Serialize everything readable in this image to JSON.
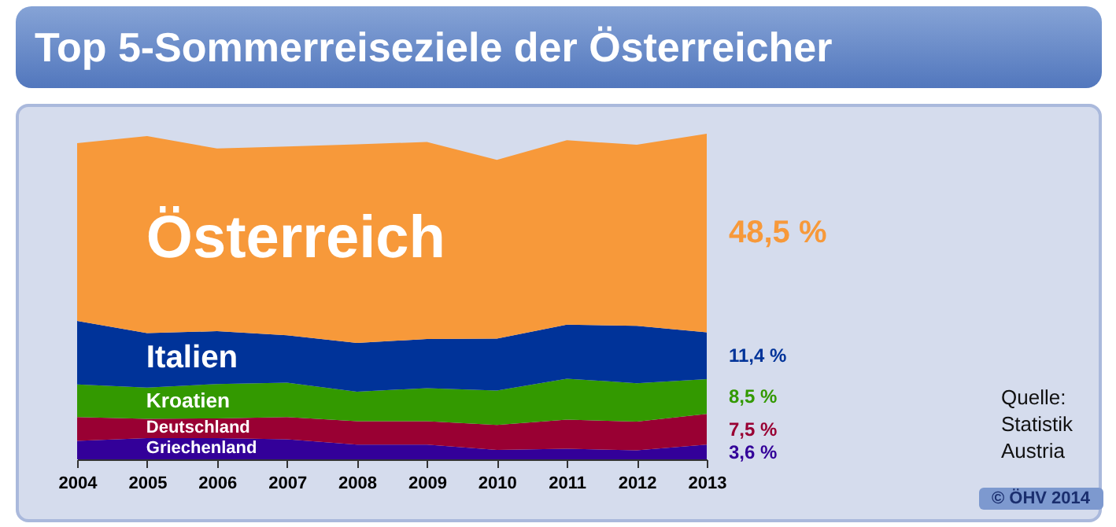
{
  "chart_data": {
    "type": "area",
    "stacked": true,
    "title": "Top 5-Sommerreiseziele der Österreicher",
    "categories": [
      "2004",
      "2005",
      "2006",
      "2007",
      "2008",
      "2009",
      "2010",
      "2011",
      "2012",
      "2013"
    ],
    "series": [
      {
        "name": "Griechenland",
        "color": "#330099",
        "values": [
          4.5,
          5.2,
          5.2,
          4.9,
          3.6,
          3.6,
          2.3,
          2.6,
          2.2,
          3.6
        ],
        "value_labels": [
          null,
          null,
          null,
          null,
          null,
          null,
          null,
          null,
          null,
          "3,6 %"
        ]
      },
      {
        "name": "Deutschland",
        "color": "#990033",
        "values": [
          5.8,
          4.7,
          4.8,
          5.4,
          5.7,
          5.7,
          6.1,
          7.1,
          7.0,
          7.5
        ],
        "value_labels": [
          null,
          null,
          null,
          null,
          null,
          null,
          null,
          null,
          null,
          "7,5 %"
        ]
      },
      {
        "name": "Kroatien",
        "color": "#339900",
        "values": [
          8.0,
          7.6,
          8.4,
          8.4,
          7.2,
          8.1,
          8.4,
          10.0,
          9.4,
          8.5
        ],
        "value_labels": [
          null,
          null,
          null,
          null,
          null,
          null,
          null,
          null,
          null,
          "8,5 %"
        ]
      },
      {
        "name": "Italien",
        "color": "#003399",
        "values": [
          15.5,
          13.3,
          12.9,
          11.6,
          11.9,
          12.0,
          12.7,
          13.2,
          14.0,
          11.4
        ],
        "value_labels": [
          null,
          null,
          null,
          null,
          null,
          null,
          null,
          null,
          null,
          "11,4 %"
        ]
      },
      {
        "name": "Österreich",
        "color": "#f7993a",
        "values": [
          43.4,
          48.1,
          44.6,
          46.1,
          48.5,
          48.1,
          43.6,
          45.0,
          44.2,
          48.5
        ],
        "value_labels": [
          null,
          null,
          null,
          null,
          null,
          null,
          null,
          null,
          null,
          "48,5 %"
        ]
      }
    ],
    "annotations": [
      "Quelle: Statistik Austria",
      "© ÖHV 2014"
    ]
  }
}
